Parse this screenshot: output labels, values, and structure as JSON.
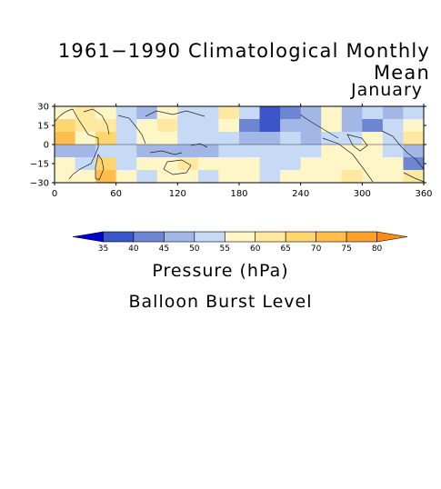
{
  "title": "1961−1990 Climatological Monthly Mean",
  "month": "January",
  "colorbar_label": "Pressure (hPa)",
  "subtitle": "Balloon Burst Level",
  "chart_data": {
    "type": "heatmap",
    "title": "1961−1990 Climatological Monthly Mean",
    "subtitle": "January",
    "colorbar_label": "Pressure (hPa)",
    "x_ticks": [
      0,
      60,
      120,
      180,
      240,
      300,
      360
    ],
    "y_ticks": [
      30,
      15,
      0,
      -15,
      -30
    ],
    "x_tick_labels": [
      "0",
      "60",
      "120",
      "180",
      "240",
      "300",
      "360"
    ],
    "y_tick_labels": [
      "30",
      "15",
      "0",
      "−15",
      "−30"
    ],
    "xlim": [
      0,
      360
    ],
    "ylim": [
      -30,
      30
    ],
    "grid_lon_step": 20,
    "grid_lat_step": 10,
    "lats": [
      25,
      15,
      5,
      -5,
      -15,
      -25
    ],
    "values": [
      [
        58,
        62,
        57,
        53,
        48,
        56,
        54,
        50,
        62,
        53,
        36,
        42,
        45,
        57,
        46,
        50,
        48,
        52
      ],
      [
        66,
        63,
        61,
        52,
        56,
        62,
        54,
        51,
        57,
        44,
        36,
        49,
        49,
        58,
        49,
        44,
        53,
        56
      ],
      [
        70,
        56,
        66,
        54,
        57,
        59,
        53,
        50,
        50,
        46,
        48,
        52,
        49,
        50,
        54,
        57,
        52,
        61
      ],
      [
        48,
        49,
        51,
        50,
        45,
        48,
        46,
        47,
        52,
        52,
        51,
        52,
        52,
        56,
        56,
        57,
        54,
        48
      ],
      [
        56,
        53,
        67,
        52,
        59,
        56,
        62,
        58,
        56,
        57,
        52,
        53,
        57,
        55,
        55,
        57,
        56,
        40
      ],
      [
        57,
        55,
        73,
        55,
        54,
        58,
        59,
        53,
        55,
        57,
        54,
        57,
        57,
        57,
        60,
        59,
        58,
        61
      ]
    ],
    "colorbar": {
      "levels": [
        35,
        40,
        45,
        50,
        55,
        60,
        65,
        70,
        75,
        80
      ],
      "colors": [
        "#0000d2",
        "#3a56c8",
        "#6c86d2",
        "#a2b7e6",
        "#c6daf5",
        "#fff6c8",
        "#ffe9a0",
        "#ffd66e",
        "#ffbd4e",
        "#ffa02a",
        "#ff8b16"
      ]
    }
  }
}
